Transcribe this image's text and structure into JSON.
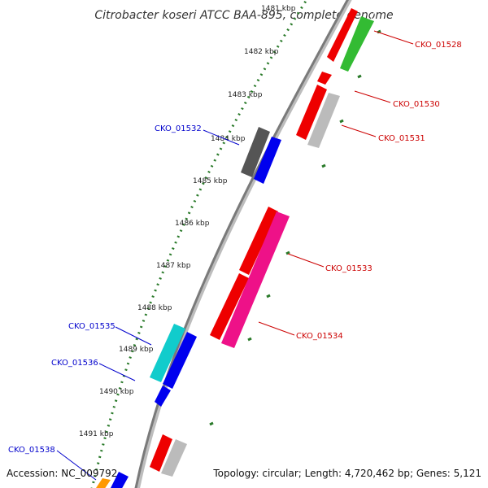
{
  "title": "Citrobacter koseri ATCC BAA-895, complete genome",
  "accession": "Accession: NC_009792",
  "summary": "Topology: circular; Length: 4,720,462 bp; Genes: 5,121",
  "ruler_labels": [
    "1481 kbp",
    "1482 kbp",
    "1483 kbp",
    "1484 kbp",
    "1485 kbp",
    "1486 kbp",
    "1487 kbp",
    "1488 kbp",
    "1489 kbp",
    "1490 kbp",
    "1491 kbp"
  ],
  "colors": {
    "backbone": "#7a7a7a",
    "ruler": "#2a7a2a",
    "forward_label": "#cc0000",
    "reverse_label": "#0000cc",
    "red": "#ee0000",
    "green": "#33bb33",
    "gray": "#bbbbbb",
    "darkgray": "#555555",
    "blue": "#0000ee",
    "magenta": "#ee1188",
    "cyan": "#11cccc",
    "orange": "#ff9900"
  },
  "labels_right": [
    "CKO_01528",
    "CKO_01530",
    "CKO_01531",
    "CKO_01533",
    "CKO_01534"
  ],
  "labels_left": [
    "CKO_01532",
    "CKO_01535",
    "CKO_01536",
    "CKO_01538"
  ]
}
